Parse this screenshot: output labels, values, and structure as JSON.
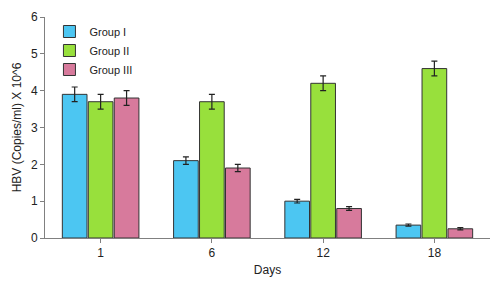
{
  "chart_data": {
    "type": "bar",
    "x_label": "Days",
    "y_label": "HBV (Copies/ml) X 10^6",
    "categories": [
      "1",
      "6",
      "12",
      "18"
    ],
    "series": [
      {
        "name": "Group I",
        "color": "#4cc6f2",
        "values": [
          3.9,
          2.1,
          1.0,
          0.35
        ],
        "errors": [
          0.2,
          0.1,
          0.05,
          0.03
        ]
      },
      {
        "name": "Group II",
        "color": "#98e03c",
        "values": [
          3.7,
          3.7,
          4.2,
          4.6
        ],
        "errors": [
          0.2,
          0.2,
          0.2,
          0.2
        ]
      },
      {
        "name": "Group III",
        "color": "#d77a9c",
        "values": [
          3.8,
          1.9,
          0.8,
          0.25
        ],
        "errors": [
          0.2,
          0.1,
          0.05,
          0.03
        ]
      }
    ],
    "ylim": [
      0,
      6
    ],
    "yticks": [
      0,
      1,
      2,
      3,
      4,
      5,
      6
    ],
    "grid": false,
    "legend": "upper left"
  }
}
